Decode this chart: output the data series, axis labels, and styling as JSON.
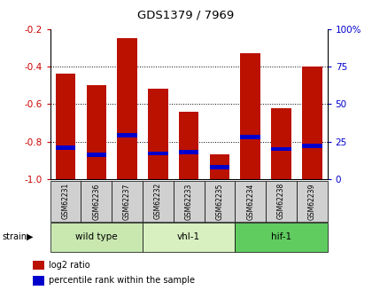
{
  "title": "GDS1379 / 7969",
  "samples": [
    "GSM62231",
    "GSM62236",
    "GSM62237",
    "GSM62232",
    "GSM62233",
    "GSM62235",
    "GSM62234",
    "GSM62238",
    "GSM62239"
  ],
  "log2_ratio": [
    -0.44,
    -0.5,
    -0.25,
    -0.52,
    -0.64,
    -0.87,
    -0.33,
    -0.62,
    -0.4
  ],
  "percentile_rank": [
    21,
    16,
    29,
    17,
    18,
    8,
    28,
    20,
    22
  ],
  "groups": [
    {
      "label": "wild type",
      "start": 0,
      "end": 3,
      "color": "#c8e8b0"
    },
    {
      "label": "vhl-1",
      "start": 3,
      "end": 6,
      "color": "#d8f0c0"
    },
    {
      "label": "hif-1",
      "start": 6,
      "end": 9,
      "color": "#60cc60"
    }
  ],
  "ylim_left": [
    -1.0,
    -0.2
  ],
  "ylim_right": [
    0,
    100
  ],
  "bar_color": "#bb1100",
  "percentile_color": "#0000cc",
  "bar_width": 0.65,
  "tick_left": [
    -0.2,
    -0.4,
    -0.6,
    -0.8,
    -1.0
  ],
  "tick_right": [
    100,
    75,
    50,
    25,
    0
  ],
  "grid_vals": [
    -0.4,
    -0.6,
    -0.8
  ],
  "ylabel_left_color": "#cc0000",
  "ylabel_right_color": "#0000cc",
  "sample_box_color": "#d0d0d0",
  "legend_items": [
    {
      "label": "log2 ratio",
      "color": "#bb1100"
    },
    {
      "label": "percentile rank within the sample",
      "color": "#0000cc"
    }
  ]
}
